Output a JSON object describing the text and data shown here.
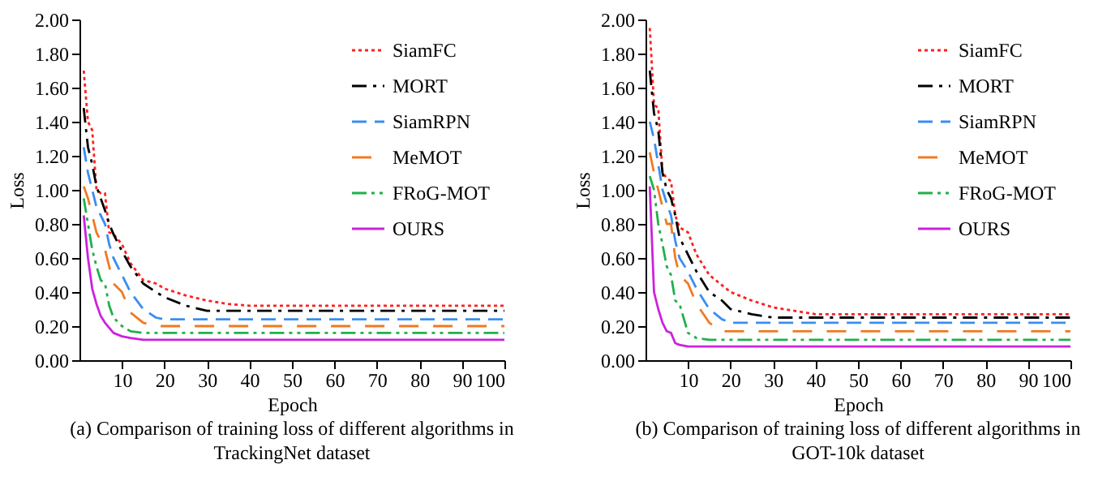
{
  "chart_data": [
    {
      "type": "line",
      "title": "(a) Comparison of training loss of different algorithms in TrackingNet dataset",
      "xlabel": "Epoch",
      "ylabel": "Loss",
      "xlim": [
        0,
        100
      ],
      "xticks": [
        10,
        20,
        30,
        40,
        50,
        60,
        70,
        80,
        90,
        100
      ],
      "ylim": [
        0,
        2
      ],
      "yticks": [
        {
          "value": 0,
          "label": "0.00"
        },
        {
          "value": 0.2,
          "label": "0.20"
        },
        {
          "value": 0.4,
          "label": "0.40"
        },
        {
          "value": 0.6,
          "label": "0.60"
        },
        {
          "value": 0.8,
          "label": "0.80"
        },
        {
          "value": 1,
          "label": "1.00"
        },
        {
          "value": 1.2,
          "label": "1.20"
        },
        {
          "value": 1.4,
          "label": "1.40"
        },
        {
          "value": 1.6,
          "label": "1.60"
        },
        {
          "value": 1.8,
          "label": "1.80"
        },
        {
          "value": 2,
          "label": "2.00"
        }
      ],
      "grid": false,
      "legend": "top right",
      "series": [
        {
          "name": "SiamFC",
          "color": "#ff2020",
          "line_style": "dotted",
          "x": [
            1,
            2,
            3,
            4,
            5,
            6,
            7,
            8,
            10,
            12,
            15,
            18,
            20,
            25,
            30,
            35,
            40,
            100
          ],
          "values": [
            1.7,
            1.4,
            1.35,
            1.0,
            0.98,
            0.98,
            0.75,
            0.74,
            0.68,
            0.57,
            0.47,
            0.45,
            0.42,
            0.38,
            0.35,
            0.33,
            0.32,
            0.32
          ]
        },
        {
          "name": "MORT",
          "color": "#000000",
          "line_style": "dashdot",
          "x": [
            1,
            2,
            3,
            4,
            5,
            6,
            7,
            8,
            10,
            12,
            15,
            18,
            20,
            25,
            30,
            35,
            40,
            100
          ],
          "values": [
            1.48,
            1.25,
            1.15,
            1.02,
            0.95,
            0.88,
            0.8,
            0.74,
            0.64,
            0.55,
            0.45,
            0.4,
            0.37,
            0.32,
            0.29,
            0.29,
            0.29,
            0.29
          ]
        },
        {
          "name": "SiamRPN",
          "color": "#3a8ef0",
          "line_style": "dashed",
          "x": [
            1,
            2,
            3,
            4,
            5,
            6,
            7,
            8,
            10,
            12,
            15,
            18,
            20,
            100
          ],
          "values": [
            1.25,
            1.1,
            1.0,
            0.9,
            0.85,
            0.8,
            0.68,
            0.6,
            0.5,
            0.4,
            0.3,
            0.25,
            0.24,
            0.24
          ]
        },
        {
          "name": "MeMOT",
          "color": "#f07a22",
          "line_style": "longdash",
          "x": [
            1,
            2,
            3,
            4,
            5,
            6,
            7,
            8,
            10,
            12,
            15,
            18,
            20,
            100
          ],
          "values": [
            1.02,
            0.95,
            0.85,
            0.75,
            0.7,
            0.65,
            0.55,
            0.45,
            0.4,
            0.28,
            0.22,
            0.2,
            0.2,
            0.2
          ]
        },
        {
          "name": "FRoG-MOT",
          "color": "#20b04a",
          "line_style": "dashdotdot",
          "x": [
            1,
            2,
            3,
            4,
            5,
            6,
            7,
            8,
            10,
            12,
            15,
            18,
            100
          ],
          "values": [
            0.95,
            0.8,
            0.65,
            0.55,
            0.47,
            0.45,
            0.32,
            0.25,
            0.2,
            0.17,
            0.16,
            0.16,
            0.16
          ]
        },
        {
          "name": "OURS",
          "color": "#cc22dd",
          "line_style": "solid",
          "x": [
            1,
            2,
            3,
            4,
            5,
            6,
            7,
            8,
            10,
            12,
            15,
            18,
            100
          ],
          "values": [
            0.85,
            0.6,
            0.42,
            0.33,
            0.26,
            0.22,
            0.19,
            0.16,
            0.14,
            0.13,
            0.12,
            0.12,
            0.12
          ]
        }
      ]
    },
    {
      "type": "line",
      "title": "(b) Comparison of training loss of different algorithms in GOT-10k dataset",
      "xlabel": "Epoch",
      "ylabel": "Loss",
      "xlim": [
        0,
        100
      ],
      "xticks": [
        10,
        20,
        30,
        40,
        50,
        60,
        70,
        80,
        90,
        100
      ],
      "ylim": [
        0,
        2
      ],
      "yticks": [
        {
          "value": 0,
          "label": "0.00"
        },
        {
          "value": 0.2,
          "label": "0.20"
        },
        {
          "value": 0.4,
          "label": "0.40"
        },
        {
          "value": 0.6,
          "label": "0.60"
        },
        {
          "value": 0.8,
          "label": "0.80"
        },
        {
          "value": 1,
          "label": "1.00"
        },
        {
          "value": 1.2,
          "label": "1.20"
        },
        {
          "value": 1.4,
          "label": "1.40"
        },
        {
          "value": 1.6,
          "label": "1.60"
        },
        {
          "value": 1.8,
          "label": "1.80"
        },
        {
          "value": 2,
          "label": "2.00"
        }
      ],
      "grid": false,
      "legend": "top right",
      "series": [
        {
          "name": "SiamFC",
          "color": "#ff2020",
          "line_style": "dotted",
          "x": [
            1,
            2,
            3,
            4,
            5,
            6,
            7,
            8,
            10,
            12,
            15,
            18,
            20,
            25,
            30,
            35,
            40,
            100
          ],
          "values": [
            1.95,
            1.5,
            1.48,
            1.1,
            1.07,
            1.05,
            0.85,
            0.78,
            0.75,
            0.62,
            0.5,
            0.44,
            0.4,
            0.35,
            0.31,
            0.29,
            0.27,
            0.27
          ]
        },
        {
          "name": "MORT",
          "color": "#000000",
          "line_style": "dashdot",
          "x": [
            1,
            2,
            3,
            4,
            5,
            6,
            7,
            8,
            10,
            12,
            15,
            18,
            20,
            25,
            30,
            100
          ],
          "values": [
            1.7,
            1.45,
            1.35,
            1.1,
            1.0,
            0.95,
            0.85,
            0.72,
            0.62,
            0.52,
            0.4,
            0.35,
            0.3,
            0.27,
            0.25,
            0.25
          ]
        },
        {
          "name": "SiamRPN",
          "color": "#3a8ef0",
          "line_style": "dashed",
          "x": [
            1,
            2,
            3,
            4,
            5,
            6,
            7,
            8,
            10,
            12,
            15,
            18,
            20,
            100
          ],
          "values": [
            1.4,
            1.3,
            1.15,
            1.0,
            0.92,
            0.85,
            0.7,
            0.6,
            0.52,
            0.42,
            0.3,
            0.24,
            0.22,
            0.22
          ]
        },
        {
          "name": "MeMOT",
          "color": "#f07a22",
          "line_style": "longdash",
          "x": [
            1,
            2,
            3,
            4,
            5,
            6,
            7,
            8,
            10,
            12,
            15,
            18,
            20,
            100
          ],
          "values": [
            1.22,
            1.1,
            1.0,
            0.9,
            0.8,
            0.8,
            0.6,
            0.5,
            0.45,
            0.33,
            0.22,
            0.17,
            0.17,
            0.17
          ]
        },
        {
          "name": "FRoG-MOT",
          "color": "#20b04a",
          "line_style": "dashdotdot",
          "x": [
            1,
            2,
            3,
            4,
            5,
            6,
            7,
            8,
            10,
            12,
            15,
            100
          ],
          "values": [
            1.08,
            1.0,
            0.8,
            0.68,
            0.55,
            0.5,
            0.35,
            0.33,
            0.16,
            0.13,
            0.12,
            0.12
          ]
        },
        {
          "name": "OURS",
          "color": "#cc22dd",
          "line_style": "solid",
          "x": [
            1,
            2,
            3,
            4,
            5,
            6,
            7,
            8,
            10,
            100
          ],
          "values": [
            1.02,
            0.4,
            0.3,
            0.22,
            0.17,
            0.16,
            0.1,
            0.09,
            0.08,
            0.08
          ]
        }
      ]
    }
  ]
}
